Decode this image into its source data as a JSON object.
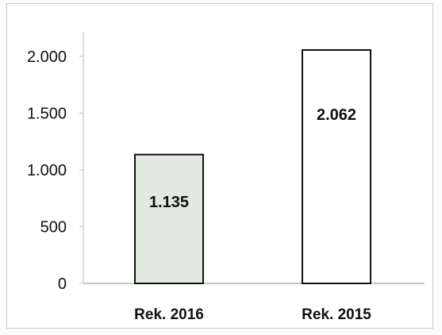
{
  "chart_data": {
    "type": "bar",
    "categories": [
      "Rek. 2016",
      "Rek. 2015"
    ],
    "values": [
      1135,
      2062
    ],
    "data_labels": [
      "1.135",
      "2.062"
    ],
    "bar_colors": [
      "#e2eadf",
      "#ffffff"
    ],
    "bar_stroke": "#111111",
    "ylim": [
      0,
      2000
    ],
    "yticks": [
      0,
      500,
      1000,
      1500,
      2000
    ],
    "ytick_labels": [
      "0",
      "500",
      "1.000",
      "1.500",
      "2.000"
    ],
    "title": "",
    "xlabel": "",
    "ylabel": "",
    "grid": false,
    "legend": "none"
  }
}
